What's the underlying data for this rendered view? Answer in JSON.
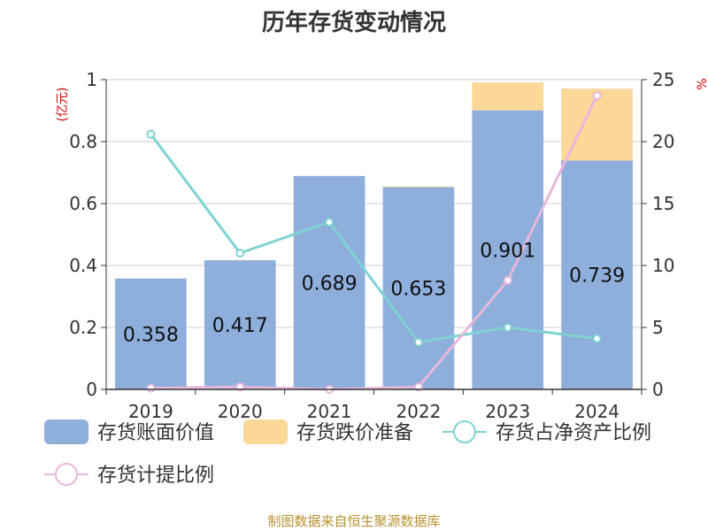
{
  "chart_data": {
    "type": "bar",
    "title": "历年存货变动情况",
    "categories": [
      "2019",
      "2020",
      "2021",
      "2022",
      "2023",
      "2024"
    ],
    "left_axis": {
      "unit": "(亿元)",
      "ylim": [
        0,
        1
      ],
      "ticks": [
        "0",
        "0.2",
        "0.4",
        "0.6",
        "0.8",
        "1"
      ]
    },
    "right_axis": {
      "unit": "%",
      "ylim": [
        0,
        25
      ],
      "ticks": [
        "0",
        "5",
        "10",
        "15",
        "20",
        "25"
      ]
    },
    "series": [
      {
        "name": "存货账面价值",
        "kind": "bar",
        "axis": "left",
        "color": "#8eaedc",
        "values": [
          0.358,
          0.417,
          0.689,
          0.653,
          0.901,
          0.739
        ]
      },
      {
        "name": "存货跌价准备",
        "kind": "bar",
        "axis": "left",
        "stacked": true,
        "color": "#fcd898",
        "values": [
          0.0,
          0.0,
          0.0,
          0.002,
          0.09,
          0.232
        ]
      },
      {
        "name": "存货占净资产比例",
        "kind": "line",
        "axis": "right",
        "color": "#7fd2d2",
        "values": [
          20.6,
          11.0,
          13.5,
          3.8,
          5.0,
          4.1
        ]
      },
      {
        "name": "存货计提比例",
        "kind": "line",
        "axis": "right",
        "color": "#e6b8dc",
        "values": [
          0.1,
          0.2,
          0.0,
          0.2,
          8.8,
          23.7
        ]
      }
    ],
    "bar_labels": [
      "0.358",
      "0.417",
      "0.689",
      "0.653",
      "0.901",
      "0.739"
    ],
    "grid": true,
    "legend_position": "bottom"
  },
  "source_note": "制图数据来自恒生聚源数据库"
}
